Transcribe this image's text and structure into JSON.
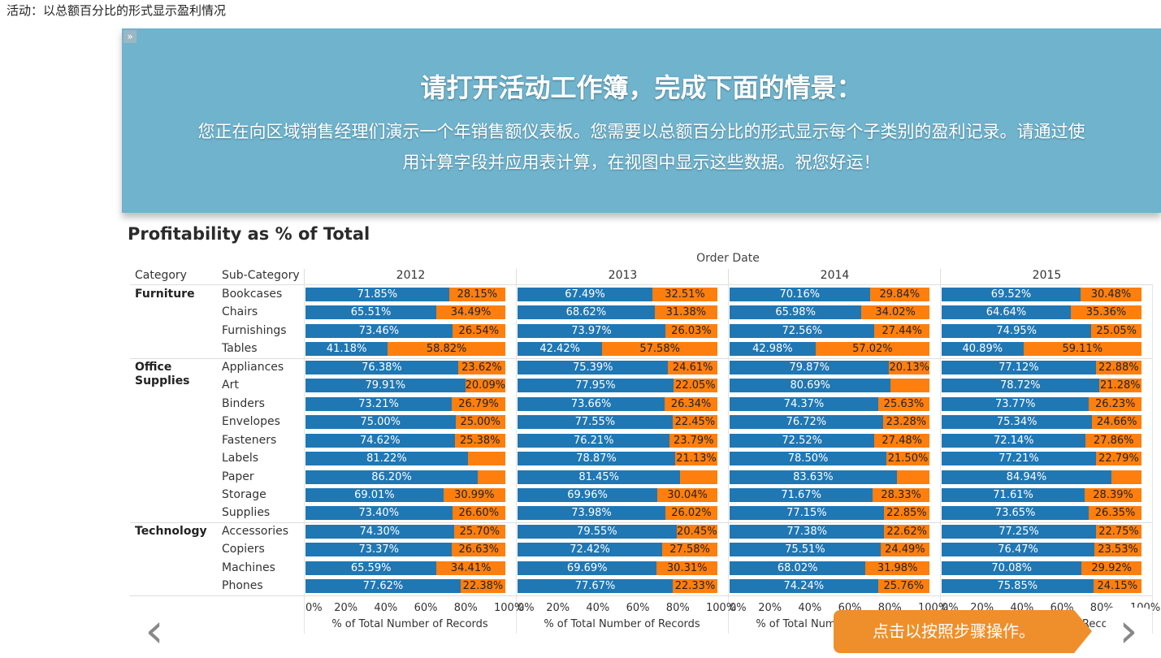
{
  "page_label": "活动：以总额百分比的形式显示盈利情况",
  "banner": {
    "expand_icon": "double-chevron-right",
    "title": "请打开活动工作簿，完成下面的情景：",
    "body": "您正在向区域销售经理们演示一个年销售额仪表板。您需要以总额百分比的形式显示每个子类别的盈利记录。请通过使用计算字段并应用表计算，在视图中显示这些数据。祝您好运！"
  },
  "viz": {
    "title": "Profitability as % of Total",
    "column_group_label": "Order Date",
    "category_header": "Category",
    "subcategory_header": "Sub-Category",
    "axis_title": "% of Total Number of Records",
    "axis_ticks": [
      "0%",
      "20%",
      "40%",
      "60%",
      "80%",
      "100%"
    ]
  },
  "chart_data": {
    "type": "bar",
    "stacked": true,
    "orientation": "horizontal",
    "title": "Profitability as % of Total",
    "xlabel": "% of Total Number of Records",
    "xlim": [
      0,
      100
    ],
    "colors": {
      "primary": "#1f77b4",
      "secondary": "#ff7f0e"
    },
    "years": [
      "2012",
      "2013",
      "2014",
      "2015"
    ],
    "categories": [
      {
        "name": "Furniture",
        "rows": [
          {
            "sub": "Bookcases",
            "values": [
              [
                "71.85%",
                "28.15%"
              ],
              [
                "67.49%",
                "32.51%"
              ],
              [
                "70.16%",
                "29.84%"
              ],
              [
                "69.52%",
                "30.48%"
              ]
            ]
          },
          {
            "sub": "Chairs",
            "values": [
              [
                "65.51%",
                "34.49%"
              ],
              [
                "68.62%",
                "31.38%"
              ],
              [
                "65.98%",
                "34.02%"
              ],
              [
                "64.64%",
                "35.36%"
              ]
            ]
          },
          {
            "sub": "Furnishings",
            "values": [
              [
                "73.46%",
                "26.54%"
              ],
              [
                "73.97%",
                "26.03%"
              ],
              [
                "72.56%",
                "27.44%"
              ],
              [
                "74.95%",
                "25.05%"
              ]
            ]
          },
          {
            "sub": "Tables",
            "values": [
              [
                "41.18%",
                "58.82%"
              ],
              [
                "42.42%",
                "57.58%"
              ],
              [
                "42.98%",
                "57.02%"
              ],
              [
                "40.89%",
                "59.11%"
              ]
            ]
          }
        ]
      },
      {
        "name": "Office Supplies",
        "rows": [
          {
            "sub": "Appliances",
            "values": [
              [
                "76.38%",
                "23.62%"
              ],
              [
                "75.39%",
                "24.61%"
              ],
              [
                "79.87%",
                "20.13%"
              ],
              [
                "77.12%",
                "22.88%"
              ]
            ]
          },
          {
            "sub": "Art",
            "values": [
              [
                "79.91%",
                "20.09%"
              ],
              [
                "77.95%",
                "22.05%"
              ],
              [
                "80.69%",
                ""
              ],
              [
                "78.72%",
                "21.28%"
              ]
            ]
          },
          {
            "sub": "Binders",
            "values": [
              [
                "73.21%",
                "26.79%"
              ],
              [
                "73.66%",
                "26.34%"
              ],
              [
                "74.37%",
                "25.63%"
              ],
              [
                "73.77%",
                "26.23%"
              ]
            ]
          },
          {
            "sub": "Envelopes",
            "values": [
              [
                "75.00%",
                "25.00%"
              ],
              [
                "77.55%",
                "22.45%"
              ],
              [
                "76.72%",
                "23.28%"
              ],
              [
                "75.34%",
                "24.66%"
              ]
            ]
          },
          {
            "sub": "Fasteners",
            "values": [
              [
                "74.62%",
                "25.38%"
              ],
              [
                "76.21%",
                "23.79%"
              ],
              [
                "72.52%",
                "27.48%"
              ],
              [
                "72.14%",
                "27.86%"
              ]
            ]
          },
          {
            "sub": "Labels",
            "values": [
              [
                "81.22%",
                ""
              ],
              [
                "78.87%",
                "21.13%"
              ],
              [
                "78.50%",
                "21.50%"
              ],
              [
                "77.21%",
                "22.79%"
              ]
            ]
          },
          {
            "sub": "Paper",
            "values": [
              [
                "86.20%",
                ""
              ],
              [
                "81.45%",
                ""
              ],
              [
                "83.63%",
                ""
              ],
              [
                "84.94%",
                ""
              ]
            ]
          },
          {
            "sub": "Storage",
            "values": [
              [
                "69.01%",
                "30.99%"
              ],
              [
                "69.96%",
                "30.04%"
              ],
              [
                "71.67%",
                "28.33%"
              ],
              [
                "71.61%",
                "28.39%"
              ]
            ]
          },
          {
            "sub": "Supplies",
            "values": [
              [
                "73.40%",
                "26.60%"
              ],
              [
                "73.98%",
                "26.02%"
              ],
              [
                "77.15%",
                "22.85%"
              ],
              [
                "73.65%",
                "26.35%"
              ]
            ]
          }
        ]
      },
      {
        "name": "Technology",
        "rows": [
          {
            "sub": "Accessories",
            "values": [
              [
                "74.30%",
                "25.70%"
              ],
              [
                "79.55%",
                "20.45%"
              ],
              [
                "77.38%",
                "22.62%"
              ],
              [
                "77.25%",
                "22.75%"
              ]
            ]
          },
          {
            "sub": "Copiers",
            "values": [
              [
                "73.37%",
                "26.63%"
              ],
              [
                "72.42%",
                "27.58%"
              ],
              [
                "75.51%",
                "24.49%"
              ],
              [
                "76.47%",
                "23.53%"
              ]
            ]
          },
          {
            "sub": "Machines",
            "values": [
              [
                "65.59%",
                "34.41%"
              ],
              [
                "69.69%",
                "30.31%"
              ],
              [
                "68.02%",
                "31.98%"
              ],
              [
                "70.08%",
                "29.92%"
              ]
            ]
          },
          {
            "sub": "Phones",
            "values": [
              [
                "77.62%",
                "22.38%"
              ],
              [
                "77.67%",
                "22.33%"
              ],
              [
                "74.24%",
                "25.76%"
              ],
              [
                "75.85%",
                "24.15%"
              ]
            ]
          }
        ]
      }
    ]
  },
  "nav": {
    "prev_icon": "chevron-left",
    "next_icon": "chevron-right",
    "cta_label": "点击以按照步骤操作。"
  }
}
